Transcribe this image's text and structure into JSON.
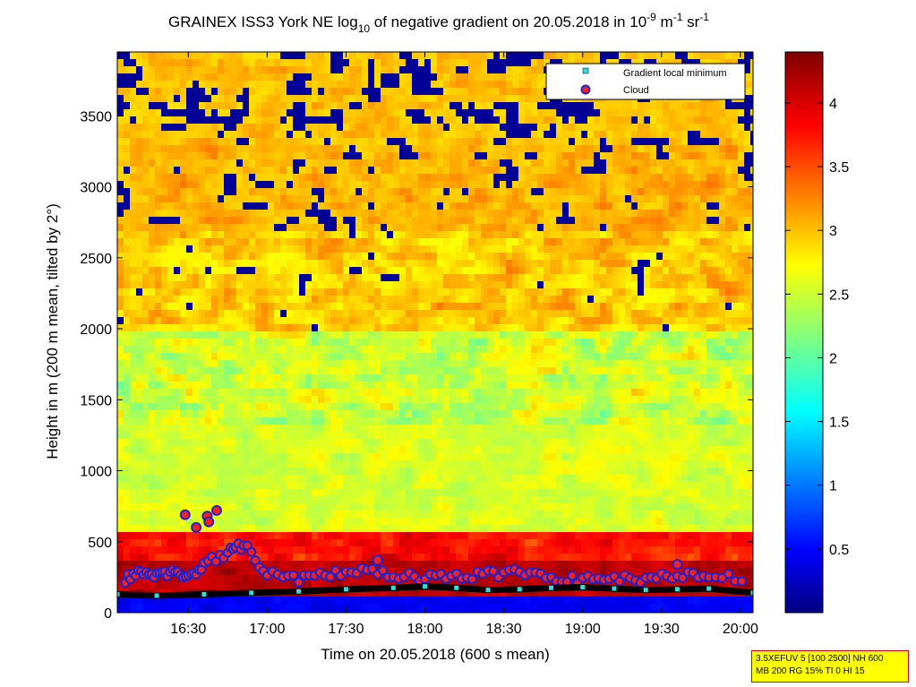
{
  "chart_data": {
    "type": "heatmap",
    "title": {
      "main": "GRAINEX ISS3 York NE log",
      "sub1": "10",
      "mid": " of negative gradient on 20.05.2018 in 10",
      "sup1": "-9",
      "unit1": " m",
      "sup2": "-1",
      "unit2": " sr",
      "sup3": "-1"
    },
    "xlabel": "Time on 20.05.2018 (600 s mean)",
    "ylabel": "Height in m (200 m mean, tilted by 2°)",
    "xlim_hours": [
      16.05,
      20.08
    ],
    "ylim": [
      0,
      3950
    ],
    "x_ticks": [
      {
        "v": 16.5,
        "label": "16:30"
      },
      {
        "v": 17.0,
        "label": "17:00"
      },
      {
        "v": 17.5,
        "label": "17:30"
      },
      {
        "v": 18.0,
        "label": "18:00"
      },
      {
        "v": 18.5,
        "label": "18:30"
      },
      {
        "v": 19.0,
        "label": "19:00"
      },
      {
        "v": 19.5,
        "label": "19:30"
      },
      {
        "v": 20.0,
        "label": "20:00"
      }
    ],
    "y_ticks": [
      0,
      500,
      1000,
      1500,
      2000,
      2500,
      3000,
      3500
    ],
    "colorbar": {
      "range": [
        0,
        4.4
      ],
      "ticks": [
        "0.5",
        "1",
        "1.5",
        "2",
        "2.5",
        "3",
        "3.5",
        "4"
      ],
      "tick_values": [
        0.5,
        1,
        1.5,
        2,
        2.5,
        3,
        3.5,
        4
      ],
      "colormap": "jet"
    },
    "legend": {
      "placement": "top-right",
      "entries": [
        {
          "label": "Gradient local minimum",
          "marker": "square",
          "color": "#33dddd"
        },
        {
          "label": "Cloud",
          "marker": "circle",
          "color": "#ee2222",
          "edge": "#2222cc"
        }
      ]
    },
    "gradient_minimum_height": [
      [
        16.05,
        130
      ],
      [
        16.3,
        120
      ],
      [
        16.6,
        130
      ],
      [
        16.9,
        140
      ],
      [
        17.2,
        150
      ],
      [
        17.5,
        165
      ],
      [
        17.8,
        175
      ],
      [
        18.0,
        185
      ],
      [
        18.2,
        175
      ],
      [
        18.4,
        160
      ],
      [
        18.6,
        165
      ],
      [
        18.8,
        175
      ],
      [
        19.0,
        180
      ],
      [
        19.2,
        170
      ],
      [
        19.4,
        160
      ],
      [
        19.6,
        165
      ],
      [
        19.8,
        170
      ],
      [
        20.08,
        140
      ]
    ],
    "cloud_base_height": [
      [
        16.1,
        240
      ],
      [
        16.2,
        300
      ],
      [
        16.3,
        260
      ],
      [
        16.4,
        290
      ],
      [
        16.5,
        240
      ],
      [
        16.6,
        350
      ],
      [
        16.75,
        420
      ],
      [
        16.85,
        480
      ],
      [
        17.0,
        280
      ],
      [
        17.2,
        230
      ],
      [
        17.4,
        280
      ],
      [
        17.6,
        300
      ],
      [
        17.8,
        260
      ],
      [
        18.0,
        240
      ],
      [
        18.2,
        260
      ],
      [
        18.4,
        270
      ],
      [
        18.6,
        290
      ],
      [
        18.8,
        250
      ],
      [
        19.0,
        230
      ],
      [
        19.2,
        240
      ],
      [
        19.4,
        230
      ],
      [
        19.6,
        270
      ],
      [
        19.8,
        260
      ],
      [
        20.05,
        240
      ]
    ],
    "isolated_clouds": [
      [
        16.48,
        690
      ],
      [
        16.55,
        600
      ],
      [
        16.62,
        680
      ],
      [
        16.63,
        640
      ],
      [
        16.68,
        720
      ],
      [
        17.7,
        370
      ],
      [
        19.6,
        340
      ]
    ]
  },
  "info_box": {
    "line1": "3.5XEFUV 5 [100 2500] NH 600",
    "line2": "MB 200 RG 15% TI 0 HI 15"
  }
}
